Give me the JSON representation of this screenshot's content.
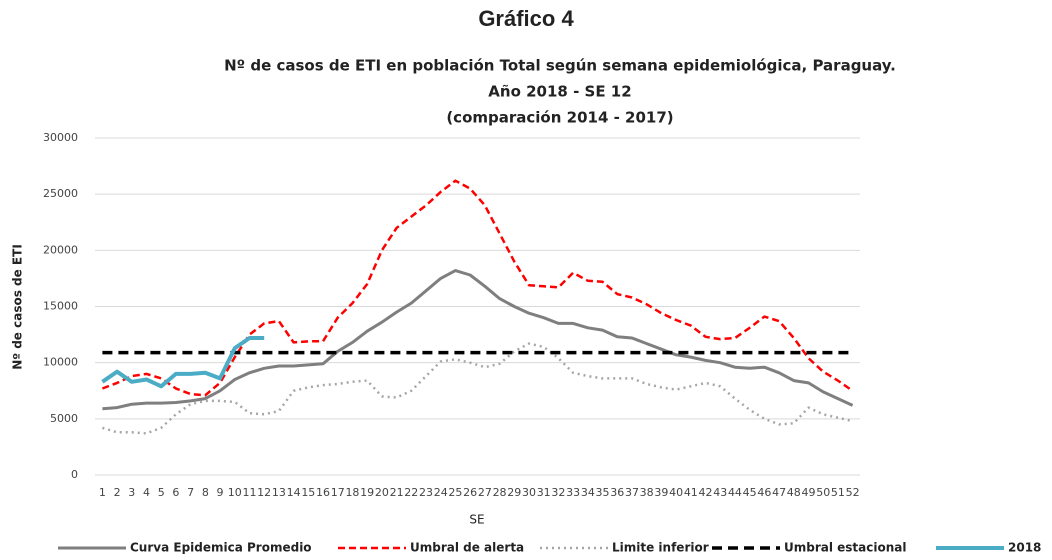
{
  "chart_data": {
    "type": "line",
    "title": "Gráfico 4",
    "subtitle": [
      "Nº de casos de ETI en población Total según semana epidemiológica, Paraguay.",
      "Año 2018 - SE 12",
      "(comparación 2014 - 2017)"
    ],
    "y_label": "Nº de casos de ETI",
    "x_label": "SE",
    "categories": [
      "1",
      "2",
      "3",
      "4",
      "5",
      "6",
      "7",
      "8",
      "9",
      "10",
      "11",
      "12",
      "13",
      "14",
      "15",
      "16",
      "17",
      "18",
      "19",
      "20",
      "21",
      "22",
      "23",
      "24",
      "25",
      "26",
      "27",
      "28",
      "29",
      "30",
      "31",
      "32",
      "33",
      "34",
      "35",
      "36",
      "37",
      "38",
      "39",
      "40",
      "41",
      "42",
      "43",
      "44",
      "45",
      "46",
      "47",
      "48",
      "49",
      "50",
      "51",
      "52"
    ],
    "ylim": [
      0,
      30000
    ],
    "yticks": [
      0,
      5000,
      10000,
      15000,
      20000,
      25000,
      30000
    ],
    "grid": true,
    "legend": "bottom",
    "series": [
      {
        "name": "Curva Epidemica Promedio",
        "color": "#7f7f7f",
        "dash": "none",
        "width": 3,
        "values": [
          5900,
          6000,
          6300,
          6400,
          6400,
          6450,
          6600,
          6800,
          7500,
          8500,
          9100,
          9500,
          9700,
          9700,
          9800,
          9900,
          11000,
          11800,
          12800,
          13600,
          14500,
          15300,
          16400,
          17500,
          18200,
          17800,
          16800,
          15700,
          15000,
          14400,
          14000,
          13500,
          13500,
          13100,
          12900,
          12300,
          12200,
          11700,
          11200,
          10700,
          10500,
          10200,
          10000,
          9600,
          9500,
          9600,
          9100,
          8400,
          8200,
          7400,
          6800,
          6200
        ]
      },
      {
        "name": "Umbral de alerta",
        "color": "#ff0000",
        "dash": "7,4",
        "width": 2.5,
        "values": [
          7700,
          8200,
          8800,
          9000,
          8600,
          7700,
          7200,
          7100,
          8200,
          10500,
          12500,
          13500,
          13700,
          11800,
          11900,
          11900,
          14000,
          15300,
          17000,
          20000,
          22000,
          23000,
          24000,
          25200,
          26200,
          25500,
          24000,
          21500,
          19000,
          16900,
          16800,
          16700,
          18000,
          17300,
          17200,
          16100,
          15800,
          15200,
          14400,
          13800,
          13300,
          12300,
          12100,
          12200,
          13100,
          14100,
          13700,
          12200,
          10400,
          9200,
          8400,
          7500
        ]
      },
      {
        "name": "Limite inferior",
        "color": "#a6a6a6",
        "dash": "2,4",
        "width": 2.5,
        "values": [
          4200,
          3800,
          3800,
          3700,
          4200,
          5400,
          6300,
          6600,
          6600,
          6500,
          5500,
          5400,
          5700,
          7500,
          7800,
          8000,
          8100,
          8300,
          8400,
          7000,
          6900,
          7500,
          8800,
          10100,
          10300,
          10000,
          9600,
          9900,
          11000,
          11700,
          11400,
          10400,
          9100,
          8800,
          8600,
          8600,
          8600,
          8100,
          7800,
          7600,
          7900,
          8200,
          7900,
          6800,
          5800,
          5000,
          4500,
          4600,
          6000,
          5400,
          5100,
          4800
        ]
      },
      {
        "name": "Umbral estacional",
        "color": "#000000",
        "dash": "10,6",
        "width": 3.5,
        "values": [
          10900,
          10900,
          10900,
          10900,
          10900,
          10900,
          10900,
          10900,
          10900,
          10900,
          10900,
          10900,
          10900,
          10900,
          10900,
          10900,
          10900,
          10900,
          10900,
          10900,
          10900,
          10900,
          10900,
          10900,
          10900,
          10900,
          10900,
          10900,
          10900,
          10900,
          10900,
          10900,
          10900,
          10900,
          10900,
          10900,
          10900,
          10900,
          10900,
          10900,
          10900,
          10900,
          10900,
          10900,
          10900,
          10900,
          10900,
          10900,
          10900,
          10900,
          10900,
          10900
        ]
      },
      {
        "name": "2018",
        "color": "#4bacc6",
        "dash": "none",
        "width": 4,
        "values": [
          8300,
          9200,
          8300,
          8500,
          7900,
          9000,
          9000,
          9100,
          8600,
          11300,
          12200,
          12200,
          null,
          null,
          null,
          null,
          null,
          null,
          null,
          null,
          null,
          null,
          null,
          null,
          null,
          null,
          null,
          null,
          null,
          null,
          null,
          null,
          null,
          null,
          null,
          null,
          null,
          null,
          null,
          null,
          null,
          null,
          null,
          null,
          null,
          null,
          null,
          null,
          null,
          null,
          null,
          null
        ]
      }
    ]
  }
}
